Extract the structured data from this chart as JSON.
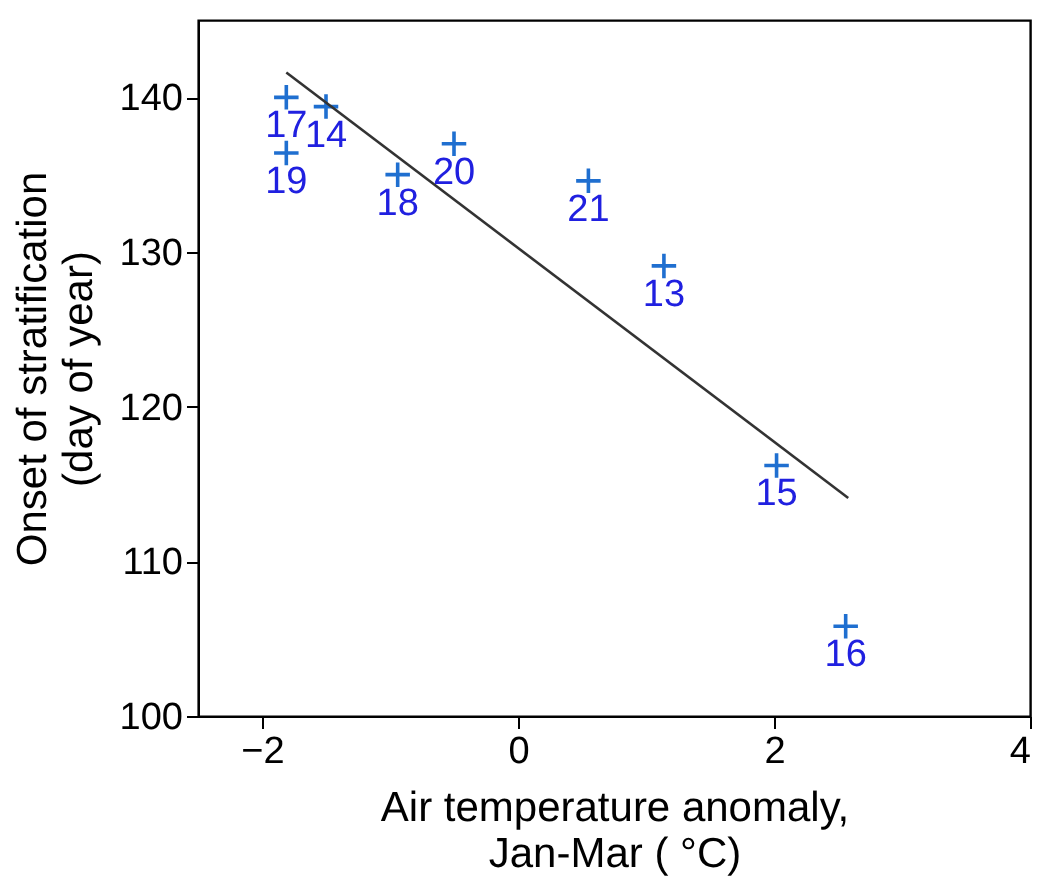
{
  "chart_data": {
    "type": "scatter",
    "xlabel": "Air temperature anomaly,\nJan-Mar ( °C)",
    "ylabel": "Onset of stratification\n(day of year)",
    "xlim": [
      -2.5,
      4
    ],
    "xticks": [
      -2,
      0,
      2,
      4
    ],
    "ylim": [
      100,
      145
    ],
    "yticks": [
      100,
      110,
      120,
      130,
      140
    ],
    "grid": false,
    "series": [
      {
        "marker": "cross",
        "color": "#1f6fd0",
        "x": [
          -1.81,
          -1.5,
          -1.81,
          -0.94,
          -0.5,
          0.55,
          1.14,
          2.02,
          2.56
        ],
        "values": [
          140.0,
          139.4,
          136.4,
          135.0,
          137.0,
          134.6,
          129.1,
          116.2,
          105.8
        ]
      },
      {
        "type": "line",
        "color": "#333333",
        "x": [
          -1.81,
          2.58
        ],
        "values": [
          141.6,
          114.1
        ]
      }
    ],
    "annotations": [
      {
        "text": "17",
        "x": -1.81,
        "y": 140.0
      },
      {
        "text": "14",
        "x": -1.5,
        "y": 139.4
      },
      {
        "text": "19",
        "x": -1.81,
        "y": 136.4
      },
      {
        "text": "18",
        "x": -0.94,
        "y": 135.0
      },
      {
        "text": "20",
        "x": -0.5,
        "y": 137.0
      },
      {
        "text": "21",
        "x": 0.55,
        "y": 134.6
      },
      {
        "text": "13",
        "x": 1.14,
        "y": 129.1
      },
      {
        "text": "15",
        "x": 2.02,
        "y": 116.2
      },
      {
        "text": "16",
        "x": 2.56,
        "y": 105.8
      }
    ]
  }
}
